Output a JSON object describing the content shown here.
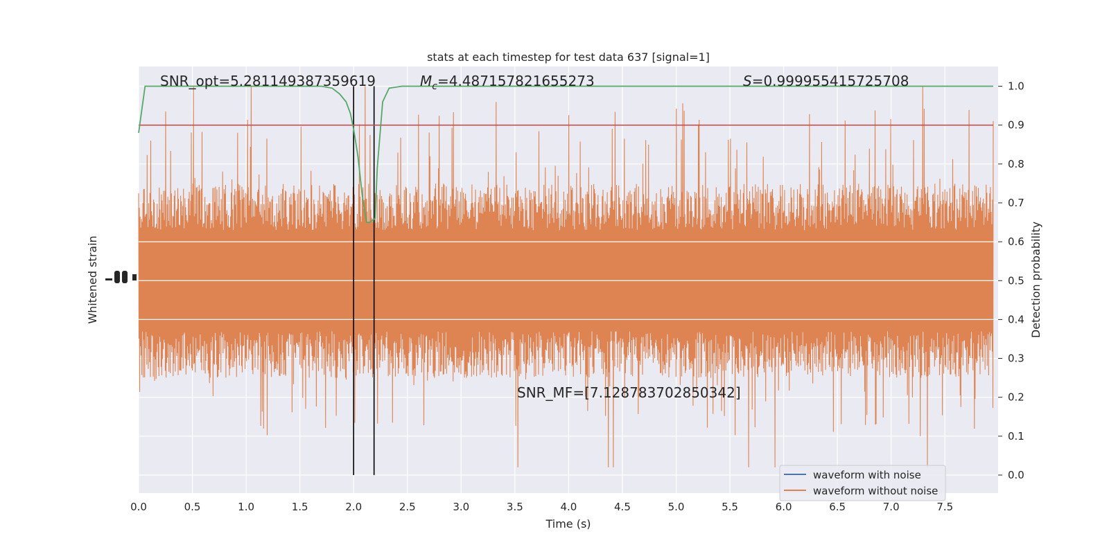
{
  "chart_data": {
    "type": "line",
    "title": "stats at each timestep for test data 637 [signal=1]",
    "xlabel": "Time (s)",
    "ylabel_left": "Whitened strain",
    "ylabel_right": "Detection probability",
    "xlim": [
      0.0,
      8.0
    ],
    "ylim_right": [
      -0.05,
      1.05
    ],
    "x_ticks": [
      "0.0",
      "0.5",
      "1.0",
      "1.5",
      "2.0",
      "2.5",
      "3.0",
      "3.5",
      "4.0",
      "4.5",
      "5.0",
      "5.5",
      "6.0",
      "6.5",
      "7.0",
      "7.5"
    ],
    "y_ticks_right": [
      "0.0",
      "0.1",
      "0.2",
      "0.3",
      "0.4",
      "0.5",
      "0.6",
      "0.7",
      "0.8",
      "0.9",
      "1.0"
    ],
    "grid": true,
    "legend_position": "lower-right",
    "legend": [
      "waveform with noise",
      "waveform without noise"
    ],
    "annotations": {
      "snr_opt": "SNR_opt=5.281149387359619",
      "mc_symbol": "M",
      "mc_sub": "c",
      "mc_value": "=4.487157821655273",
      "s_symbol": "S",
      "s_value": "=0.999955415725708",
      "snr_mf": "SNR_MF=[7.128783702850342]"
    },
    "threshold": 0.9,
    "event_window": [
      2.0,
      2.19
    ],
    "series": [
      {
        "name": "waveform with noise",
        "color": "#4c72b0",
        "note_values": "whitened strain, mostly hidden beneath the orange trace"
      },
      {
        "name": "waveform without noise",
        "color": "#dd8452",
        "envelope": {
          "typical_upper": 0.65,
          "typical_lower": 0.35,
          "peak_upper": 1.0,
          "peak_lower": 0.0
        }
      },
      {
        "color": "#55a868",
        "x": [
          0.0,
          0.06,
          0.3,
          1.0,
          1.5,
          1.7,
          1.8,
          1.87,
          1.93,
          1.97,
          2.0,
          2.04,
          2.08,
          2.12,
          2.15,
          2.2,
          2.22,
          2.27,
          2.33,
          2.45,
          2.6,
          3.0,
          5.0,
          7.0,
          7.95
        ],
        "y": [
          0.88,
          1.0,
          1.0,
          1.0,
          1.0,
          1.0,
          0.995,
          0.98,
          0.96,
          0.93,
          0.89,
          0.82,
          0.72,
          0.65,
          0.65,
          0.66,
          0.79,
          0.96,
          0.995,
          1.0,
          1.0,
          1.0,
          1.0,
          1.0,
          1.0
        ]
      },
      {
        "color": "#c44e52",
        "x": [
          0.0,
          7.95
        ],
        "y": [
          0.9,
          0.9
        ]
      }
    ]
  }
}
